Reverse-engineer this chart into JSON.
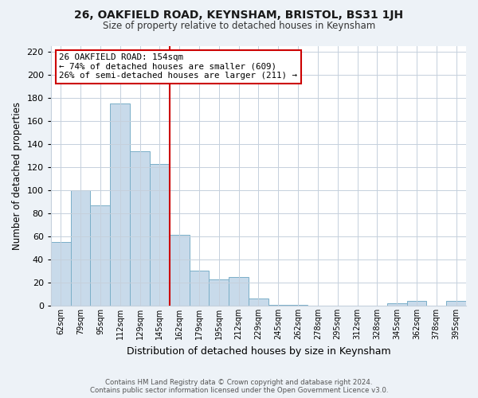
{
  "title": "26, OAKFIELD ROAD, KEYNSHAM, BRISTOL, BS31 1JH",
  "subtitle": "Size of property relative to detached houses in Keynsham",
  "xlabel": "Distribution of detached houses by size in Keynsham",
  "ylabel": "Number of detached properties",
  "categories": [
    "62sqm",
    "79sqm",
    "95sqm",
    "112sqm",
    "129sqm",
    "145sqm",
    "162sqm",
    "179sqm",
    "195sqm",
    "212sqm",
    "229sqm",
    "245sqm",
    "262sqm",
    "278sqm",
    "295sqm",
    "312sqm",
    "328sqm",
    "345sqm",
    "362sqm",
    "378sqm",
    "395sqm"
  ],
  "values": [
    55,
    100,
    87,
    175,
    134,
    123,
    61,
    30,
    23,
    25,
    6,
    1,
    1,
    0,
    0,
    0,
    0,
    2,
    4,
    0,
    4
  ],
  "bar_color": "#c8daea",
  "bar_edge_color": "#7aafc8",
  "bar_edge_width": 0.7,
  "vline_x": 5.5,
  "vline_color": "#cc0000",
  "annotation_title": "26 OAKFIELD ROAD: 154sqm",
  "annotation_line1": "← 74% of detached houses are smaller (609)",
  "annotation_line2": "26% of semi-detached houses are larger (211) →",
  "annotation_box_color": "#ffffff",
  "annotation_box_edge": "#cc0000",
  "ylim": [
    0,
    225
  ],
  "yticks": [
    0,
    20,
    40,
    60,
    80,
    100,
    120,
    140,
    160,
    180,
    200,
    220
  ],
  "footer_line1": "Contains HM Land Registry data © Crown copyright and database right 2024.",
  "footer_line2": "Contains public sector information licensed under the Open Government Licence v3.0.",
  "bg_color": "#edf2f7",
  "plot_bg_color": "#ffffff",
  "grid_color": "#c5d0dc"
}
